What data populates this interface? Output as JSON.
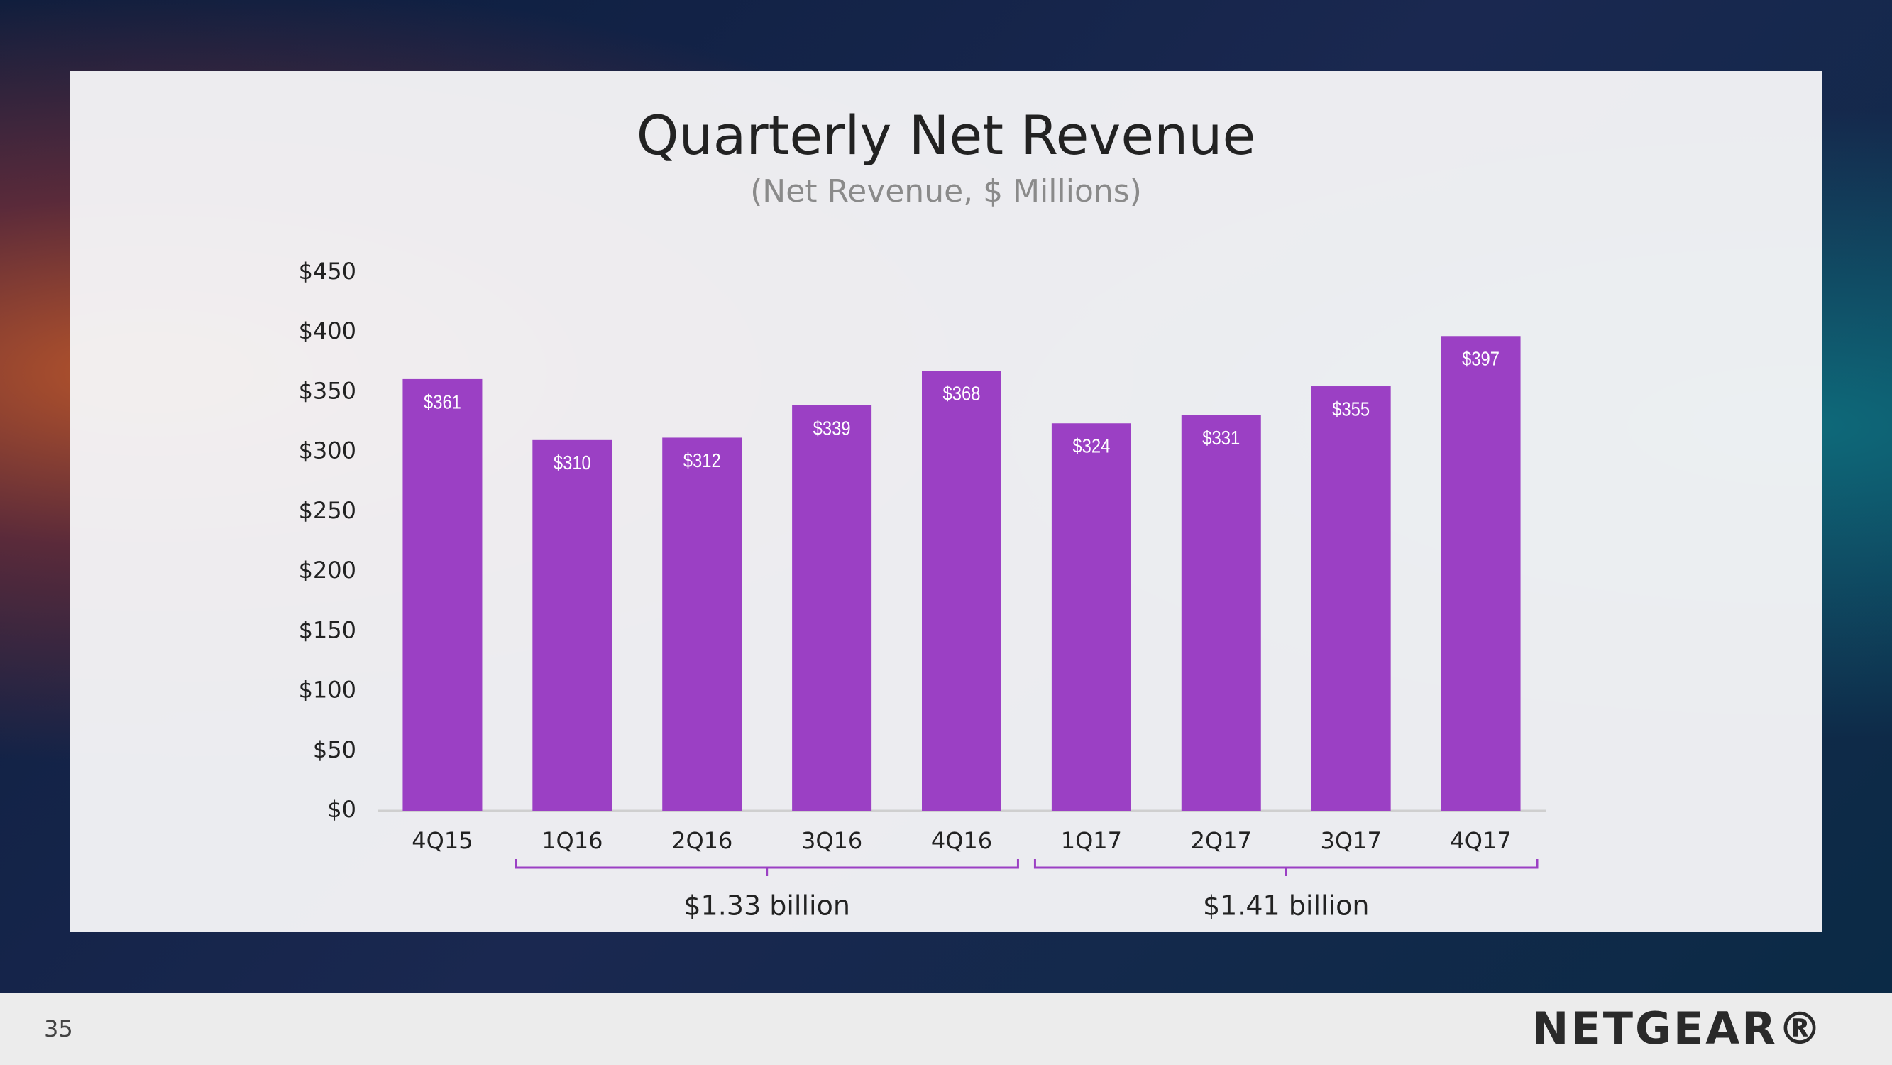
{
  "chart_data": {
    "type": "bar",
    "title": "Quarterly Net Revenue",
    "subtitle": "(Net Revenue, $ Millions)",
    "categories": [
      "4Q15",
      "1Q16",
      "2Q16",
      "3Q16",
      "4Q16",
      "1Q17",
      "2Q17",
      "3Q17",
      "4Q17"
    ],
    "values": [
      361,
      310,
      312,
      339,
      368,
      324,
      331,
      355,
      397
    ],
    "value_labels": [
      "$361",
      "$310",
      "$312",
      "$339",
      "$368",
      "$324",
      "$331",
      "$355",
      "$397"
    ],
    "color": "#9b40c4",
    "ylim": [
      0,
      450
    ],
    "yticks": [
      {
        "value": 0,
        "label": "$0"
      },
      {
        "value": 50,
        "label": "$50"
      },
      {
        "value": 100,
        "label": "$100"
      },
      {
        "value": 150,
        "label": "$150"
      },
      {
        "value": 200,
        "label": "$200"
      },
      {
        "value": 250,
        "label": "$250"
      },
      {
        "value": 300,
        "label": "$300"
      },
      {
        "value": 350,
        "label": "$350"
      },
      {
        "value": 400,
        "label": "$400"
      },
      {
        "value": 450,
        "label": "$450"
      }
    ],
    "grid": false,
    "annotations": [
      {
        "label": "$1.33 billion",
        "from": "1Q16",
        "to": "4Q16"
      },
      {
        "label": "$1.41 billion",
        "from": "1Q17",
        "to": "4Q17"
      }
    ]
  },
  "page": {
    "number": "35",
    "logo": "NETGEAR®"
  }
}
